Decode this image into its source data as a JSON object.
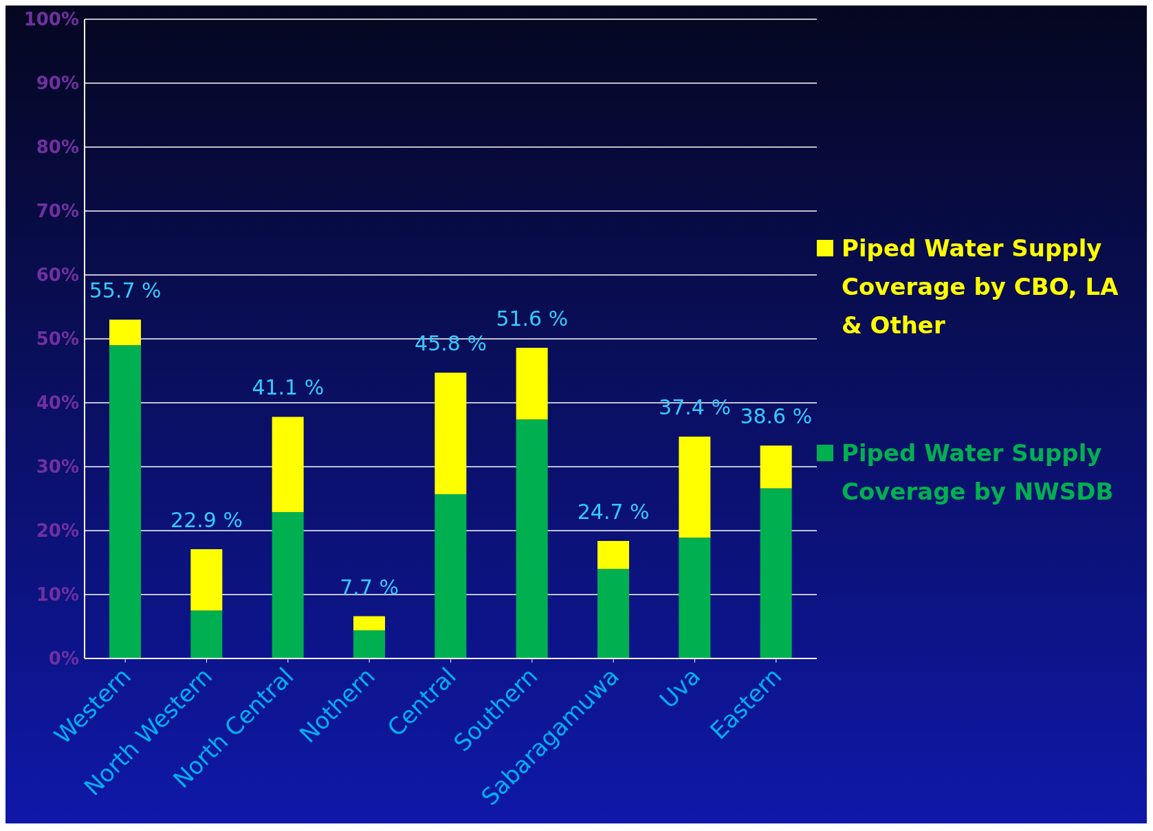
{
  "chart_data": {
    "type": "bar",
    "stacked": true,
    "categories": [
      "Western",
      "North Western",
      "North Central",
      "Nothern",
      "Central",
      "Southern",
      "Sabaragamuwa",
      "Uva",
      "Eastern"
    ],
    "series": [
      {
        "name": "Piped Water Supply Coverage by NWSDB",
        "color": "#00b050",
        "values": [
          49,
          7.5,
          22.9,
          4.4,
          25.7,
          37.4,
          14,
          18.9,
          26.6
        ]
      },
      {
        "name": "Piped Water Supply Coverage by CBO, LA & Other",
        "color": "#ffff00",
        "values": [
          4,
          9.6,
          14.9,
          2.2,
          19,
          11.2,
          4.4,
          15.8,
          6.7
        ]
      }
    ],
    "annotations": [
      {
        "text": "55.7 %",
        "x": "Western",
        "y": 53
      },
      {
        "text": "22.9 %",
        "x": "North Western",
        "y": 17.1
      },
      {
        "text": "41.1 %",
        "x": "North Central",
        "y": 37.8
      },
      {
        "text": "7.7 %",
        "x": "Nothern",
        "y": 6.6
      },
      {
        "text": "45.8 %",
        "x": "Central",
        "y": 44.7
      },
      {
        "text": "51.6 %",
        "x": "Southern",
        "y": 48.6
      },
      {
        "text": "24.7 %",
        "x": "Sabaragamuwa",
        "y": 18.4
      },
      {
        "text": "37.4 %",
        "x": "Uva",
        "y": 34.7
      },
      {
        "text": "38.6 %",
        "x": "Eastern",
        "y": 33.3
      }
    ],
    "ylim": [
      0,
      100
    ],
    "yticks": [
      {
        "value": 0,
        "label": "0%"
      },
      {
        "value": 10,
        "label": "10%"
      },
      {
        "value": 20,
        "label": "20%"
      },
      {
        "value": 30,
        "label": "30%"
      },
      {
        "value": 40,
        "label": "40%"
      },
      {
        "value": 50,
        "label": "50%"
      },
      {
        "value": 60,
        "label": "60%"
      },
      {
        "value": 70,
        "label": "70%"
      },
      {
        "value": 80,
        "label": "80%"
      },
      {
        "value": 90,
        "label": "90%"
      },
      {
        "value": 100,
        "label": "100%"
      }
    ],
    "grid": "y",
    "legend": "right"
  }
}
